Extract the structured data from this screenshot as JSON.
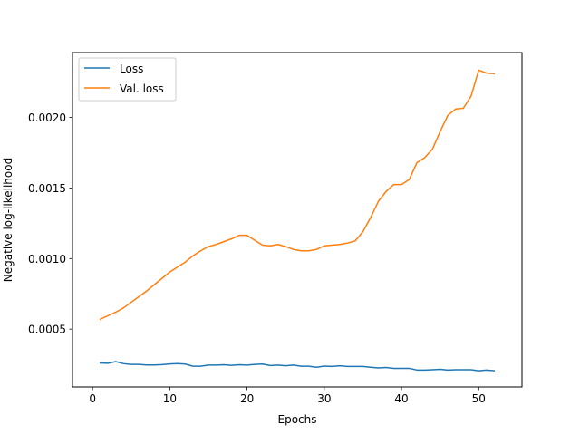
{
  "chart_data": {
    "type": "line",
    "title": "",
    "xlabel": "Epochs",
    "ylabel": "Negative log-likelihood",
    "xlim": [
      -2.6,
      55.6
    ],
    "ylim": [
      9e-05,
      0.00246
    ],
    "xticks": [
      0,
      10,
      20,
      30,
      40,
      50
    ],
    "xtick_labels": [
      "0",
      "10",
      "20",
      "30",
      "40",
      "50"
    ],
    "yticks": [
      0.0005,
      0.001,
      0.0015,
      0.002
    ],
    "ytick_labels": [
      "0.0005",
      "0.0010",
      "0.0015",
      "0.0020"
    ],
    "grid": false,
    "legend_position": "top-left",
    "x": [
      1,
      2,
      3,
      4,
      5,
      6,
      7,
      8,
      9,
      10,
      11,
      12,
      13,
      14,
      15,
      16,
      17,
      18,
      19,
      20,
      21,
      22,
      23,
      24,
      25,
      26,
      27,
      28,
      29,
      30,
      31,
      32,
      33,
      34,
      35,
      36,
      37,
      38,
      39,
      40,
      41,
      42,
      43,
      44,
      45,
      46,
      47,
      48,
      49,
      50,
      51,
      52
    ],
    "series": [
      {
        "name": "Loss",
        "color": "#1f77b4",
        "values": [
          0.00026,
          0.000258,
          0.00027,
          0.000255,
          0.00025,
          0.00025,
          0.000246,
          0.000246,
          0.000248,
          0.000253,
          0.000255,
          0.000252,
          0.000237,
          0.000237,
          0.000245,
          0.000245,
          0.000247,
          0.000243,
          0.000247,
          0.000245,
          0.00025,
          0.000252,
          0.000242,
          0.000245,
          0.00024,
          0.000245,
          0.000237,
          0.000237,
          0.00023,
          0.000238,
          0.000235,
          0.00024,
          0.000235,
          0.000235,
          0.000235,
          0.00023,
          0.000225,
          0.000228,
          0.000222,
          0.000222,
          0.000222,
          0.00021,
          0.00021,
          0.000212,
          0.000215,
          0.00021,
          0.000212,
          0.000212,
          0.000212,
          0.000205,
          0.00021,
          0.000205
        ]
      },
      {
        "name": "Val. loss",
        "color": "#ff7f0e",
        "values": [
          0.00057,
          0.000595,
          0.00062,
          0.00065,
          0.00069,
          0.00073,
          0.00077,
          0.000815,
          0.00086,
          0.000905,
          0.00094,
          0.000975,
          0.00102,
          0.001055,
          0.001085,
          0.0011,
          0.00112,
          0.00114,
          0.001165,
          0.001165,
          0.00113,
          0.001095,
          0.00109,
          0.0011,
          0.001085,
          0.001065,
          0.001055,
          0.001055,
          0.001065,
          0.00109,
          0.001095,
          0.0011,
          0.00111,
          0.001125,
          0.00119,
          0.00129,
          0.001405,
          0.001475,
          0.001525,
          0.001525,
          0.00156,
          0.00168,
          0.001715,
          0.001775,
          0.0019,
          0.002015,
          0.00206,
          0.002065,
          0.00215,
          0.002335,
          0.002315,
          0.00231
        ]
      }
    ]
  }
}
